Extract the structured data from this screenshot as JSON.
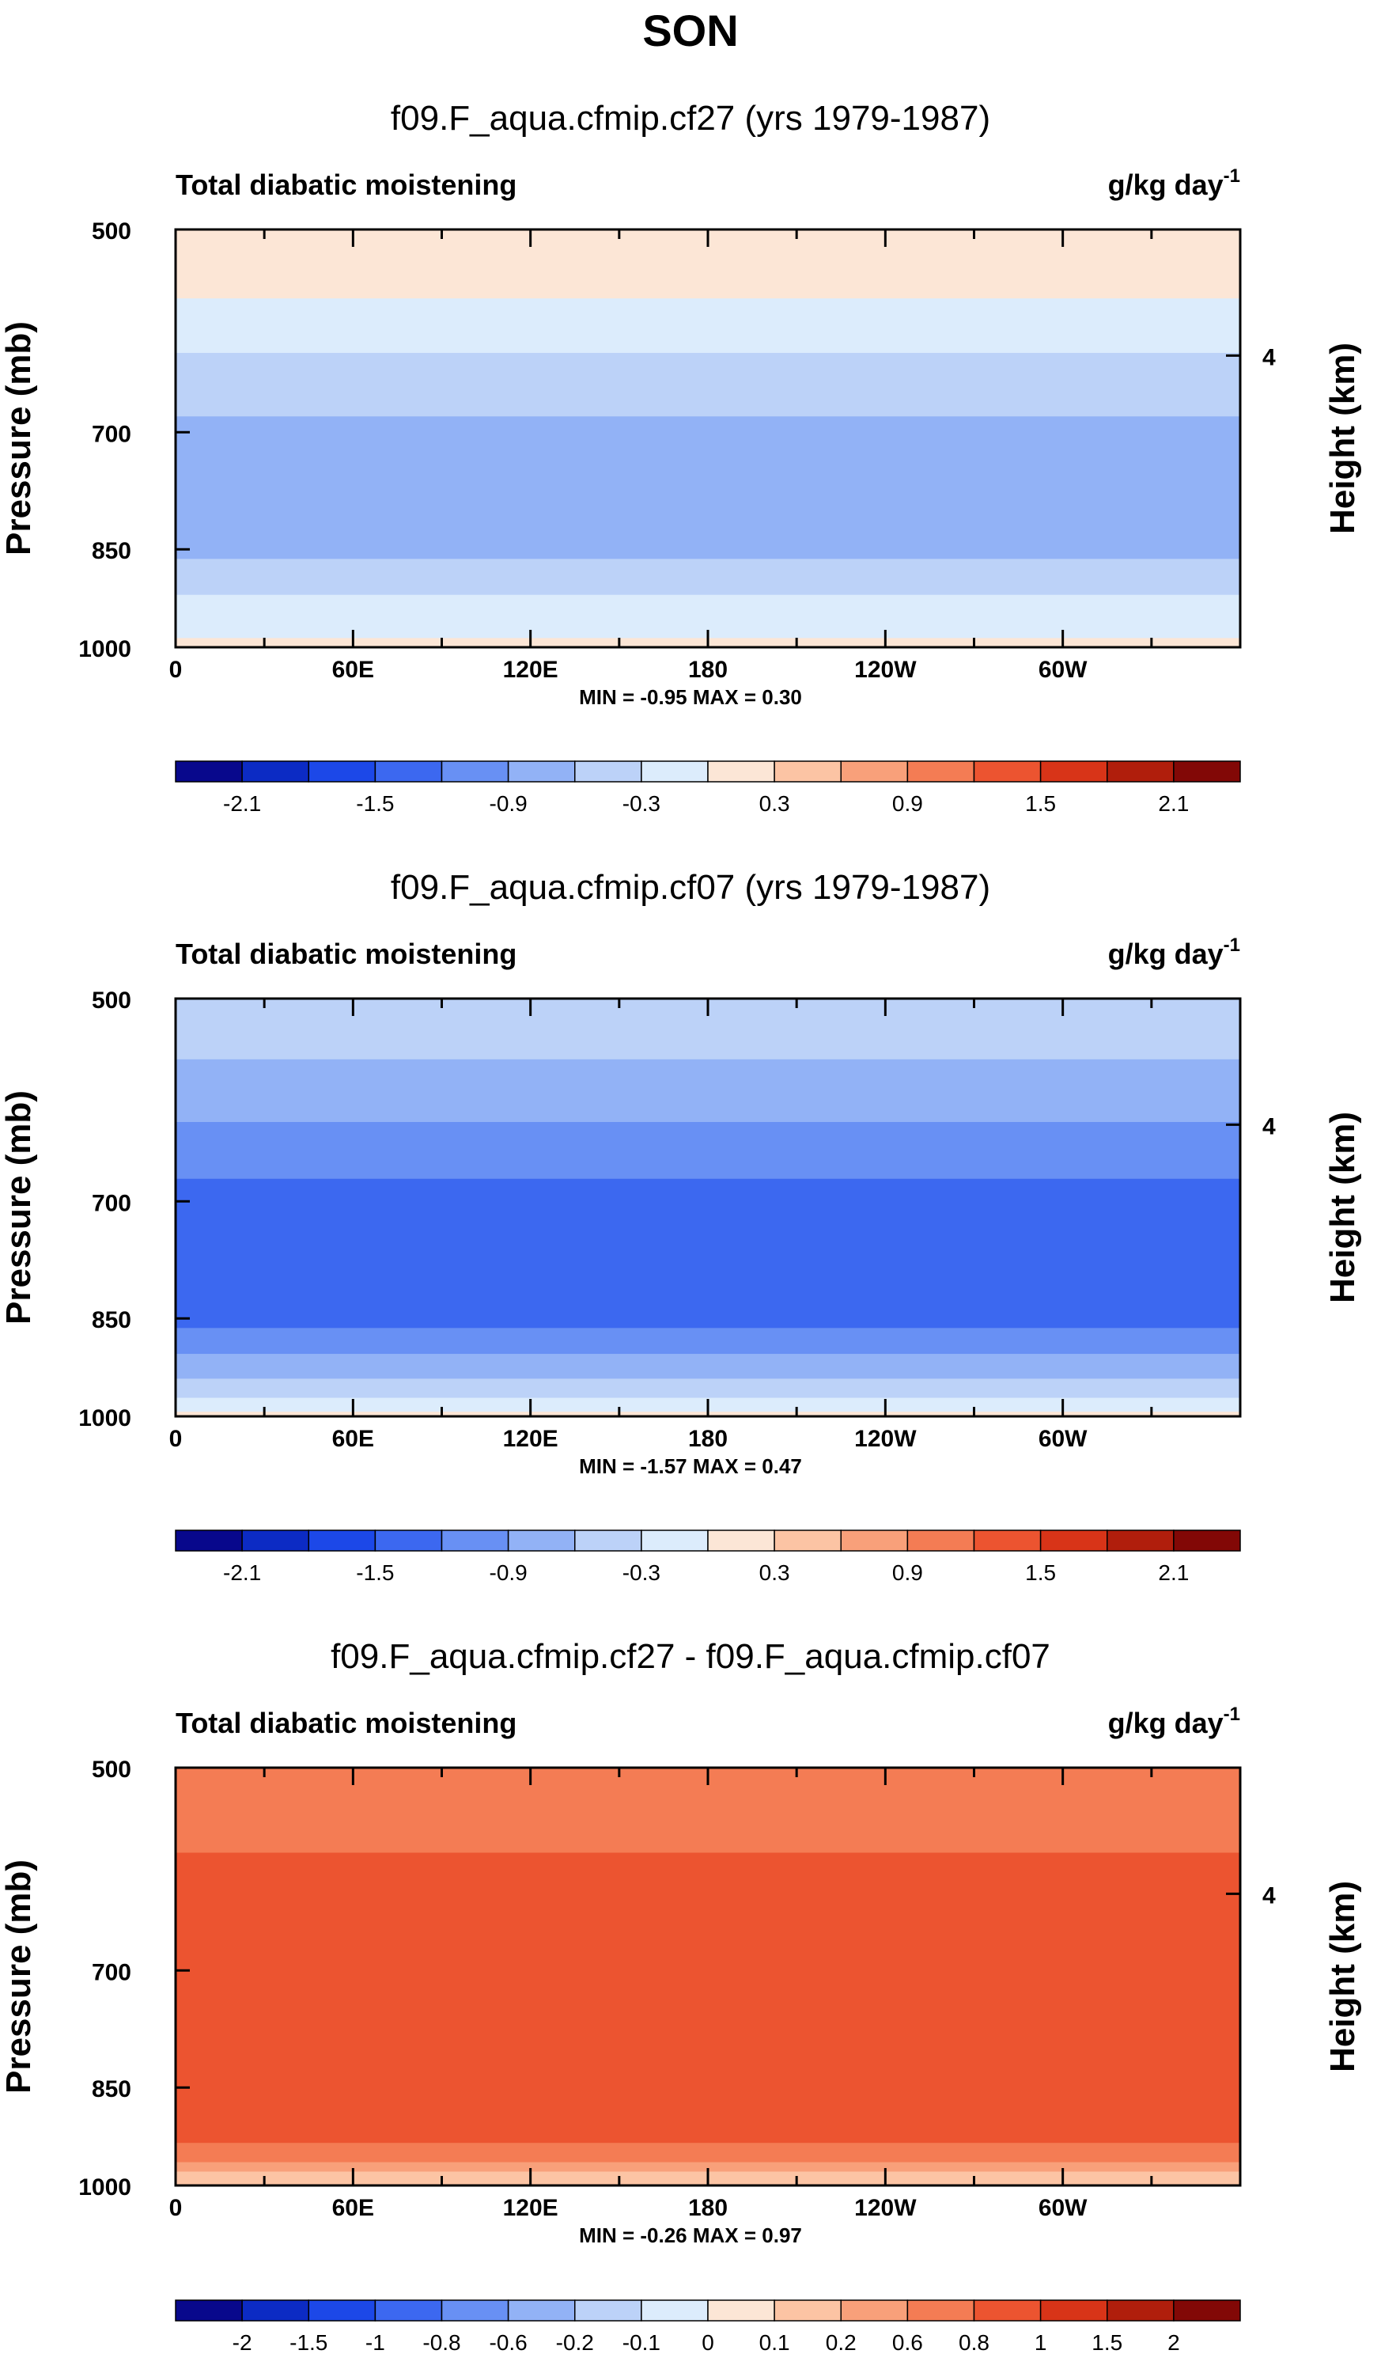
{
  "figure_title": "SON",
  "colors": {
    "frame": "#000000",
    "background": "#ffffff"
  },
  "chart_data": [
    {
      "type": "contour",
      "title": "f09.F_aqua.cfmip.cf27 (yrs 1979-1987)",
      "left_label": "Total diabatic moistening",
      "units": "g/kg day",
      "units_exp": "-1",
      "ylabel": "Pressure (mb)",
      "ylabel_right": "Height (km)",
      "y_ticks": [
        "500",
        "700",
        "850",
        "1000"
      ],
      "y_right_ticks": [
        "4"
      ],
      "x_ticks": [
        "0",
        "60E",
        "120E",
        "180",
        "120W",
        "60W"
      ],
      "stats": "MIN =  -0.95  MAX =   0.30",
      "levels": [
        -2.4,
        -2.1,
        -1.8,
        -1.5,
        -1.2,
        -0.9,
        -0.6,
        -0.3,
        0,
        0.3,
        0.6,
        0.9,
        1.2,
        1.5,
        1.8,
        2.1,
        2.4
      ],
      "colorbar_labels": [
        "-2.1",
        "-1.5",
        "-0.9",
        "-0.3",
        "0.3",
        "0.9",
        "1.5",
        "2.1"
      ],
      "colorbar_colors": [
        "#08088c",
        "#0c2bc4",
        "#1c48e8",
        "#3c68f0",
        "#6890f4",
        "#92b2f6",
        "#bcd2f8",
        "#dcecfc",
        "#fce6d6",
        "#fcc4a4",
        "#f8a07a",
        "#f47c54",
        "#ec5430",
        "#d83418",
        "#b01e0c",
        "#820806"
      ],
      "profile": [
        {
          "pressure": 500,
          "value": 0.05
        },
        {
          "pressure": 540,
          "value": 0.1
        },
        {
          "pressure": 600,
          "value": -0.25
        },
        {
          "pressure": 650,
          "value": -0.45
        },
        {
          "pressure": 700,
          "value": -0.7
        },
        {
          "pressure": 780,
          "value": -0.8
        },
        {
          "pressure": 850,
          "value": -0.7
        },
        {
          "pressure": 900,
          "value": -0.4
        },
        {
          "pressure": 950,
          "value": -0.1
        },
        {
          "pressure": 1000,
          "value": 0.05
        }
      ]
    },
    {
      "type": "contour",
      "title": "f09.F_aqua.cfmip.cf07 (yrs 1979-1987)",
      "left_label": "Total diabatic moistening",
      "units": "g/kg day",
      "units_exp": "-1",
      "ylabel": "Pressure (mb)",
      "ylabel_right": "Height (km)",
      "y_ticks": [
        "500",
        "700",
        "850",
        "1000"
      ],
      "y_right_ticks": [
        "4"
      ],
      "x_ticks": [
        "0",
        "60E",
        "120E",
        "180",
        "120W",
        "60W"
      ],
      "stats": "MIN =  -1.57  MAX =   0.47",
      "levels": [
        -2.4,
        -2.1,
        -1.8,
        -1.5,
        -1.2,
        -0.9,
        -0.6,
        -0.3,
        0,
        0.3,
        0.6,
        0.9,
        1.2,
        1.5,
        1.8,
        2.1,
        2.4
      ],
      "colorbar_labels": [
        "-2.1",
        "-1.5",
        "-0.9",
        "-0.3",
        "0.3",
        "0.9",
        "1.5",
        "2.1"
      ],
      "colorbar_colors": [
        "#08088c",
        "#0c2bc4",
        "#1c48e8",
        "#3c68f0",
        "#6890f4",
        "#92b2f6",
        "#bcd2f8",
        "#dcecfc",
        "#fce6d6",
        "#fcc4a4",
        "#f8a07a",
        "#f47c54",
        "#ec5430",
        "#d83418",
        "#b01e0c",
        "#820806"
      ],
      "profile": [
        {
          "pressure": 500,
          "value": -0.4
        },
        {
          "pressure": 600,
          "value": -0.8
        },
        {
          "pressure": 650,
          "value": -1.1
        },
        {
          "pressure": 700,
          "value": -1.3
        },
        {
          "pressure": 780,
          "value": -1.4
        },
        {
          "pressure": 850,
          "value": -1.3
        },
        {
          "pressure": 900,
          "value": -0.9
        },
        {
          "pressure": 950,
          "value": -0.5
        },
        {
          "pressure": 1000,
          "value": 0.05
        }
      ]
    },
    {
      "type": "contour",
      "title": "f09.F_aqua.cfmip.cf27 - f09.F_aqua.cfmip.cf07",
      "left_label": "Total diabatic moistening",
      "units": "g/kg day",
      "units_exp": "-1",
      "ylabel": "Pressure (mb)",
      "ylabel_right": "Height (km)",
      "y_ticks": [
        "500",
        "700",
        "850",
        "1000"
      ],
      "y_right_ticks": [
        "4"
      ],
      "x_ticks": [
        "0",
        "60E",
        "120E",
        "180",
        "120W",
        "60W"
      ],
      "stats": "MIN =  -0.26  MAX =   0.97",
      "levels": [
        -2.5,
        -2,
        -1.5,
        -1,
        -0.8,
        -0.6,
        -0.4,
        -0.2,
        -0.1,
        0,
        0.1,
        0.2,
        0.4,
        0.6,
        0.8,
        1,
        1.5,
        2,
        2.5
      ],
      "colorbar_labels": [
        "-2",
        "-1.5",
        "-1",
        "-0.8",
        "-0.6",
        "-0.2",
        "-0.1",
        "0",
        "0.1",
        "0.2",
        "0.6",
        "0.8",
        "1",
        "1.5",
        "2"
      ],
      "colorbar_colors": [
        "#08088c",
        "#0c2bc4",
        "#1c48e8",
        "#3c68f0",
        "#6890f4",
        "#92b2f6",
        "#bcd2f8",
        "#dcecfc",
        "#fce6d6",
        "#fcc4a4",
        "#f8a07a",
        "#f47c54",
        "#ec5430",
        "#d83418",
        "#b01e0c",
        "#820806"
      ],
      "profile": [
        {
          "pressure": 500,
          "value": 0.25
        },
        {
          "pressure": 560,
          "value": 0.35
        },
        {
          "pressure": 620,
          "value": 0.55
        },
        {
          "pressure": 700,
          "value": 0.4
        },
        {
          "pressure": 850,
          "value": 0.55
        },
        {
          "pressure": 920,
          "value": 0.45
        },
        {
          "pressure": 980,
          "value": 0.1
        },
        {
          "pressure": 1000,
          "value": 0.02
        }
      ]
    }
  ]
}
